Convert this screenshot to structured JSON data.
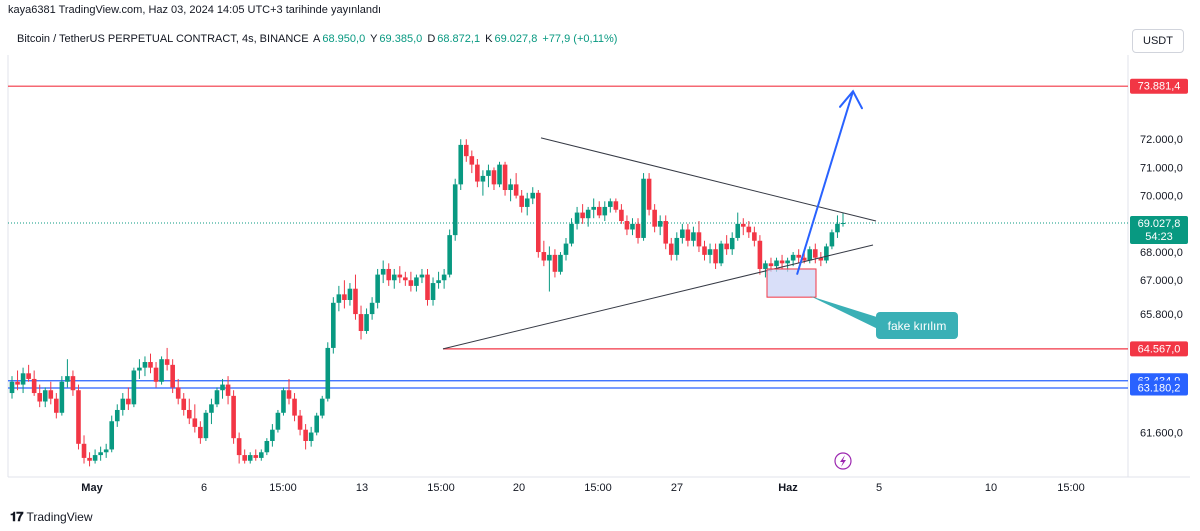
{
  "publish_line": "kaya6381 TradingView.com, Haz 03, 2024 14:05 UTC+3 tarihinde yayınlandı",
  "legend": {
    "symbol": "Bitcoin / TetherUS PERPETUAL CONTRACT, 4s, BINANCE",
    "open_label": "A",
    "open": "68.950,0",
    "high_label": "Y",
    "high": "69.385,0",
    "low_label": "D",
    "low": "68.872,1",
    "close_label": "K",
    "close": "69.027,8",
    "change": "+77,9 (+0,11%)"
  },
  "currency": "USDT",
  "brand": "TradingView",
  "colors": {
    "up": "#089981",
    "down": "#f23645",
    "line_red": "#f23645",
    "line_blue": "#2962ff",
    "callout": "#3ab0b6",
    "zone": "#c9d1f7"
  },
  "chart_data": {
    "type": "candlestick",
    "y_axis_ticks": [
      "72.000,0",
      "71.000,0",
      "70.000,0",
      "68.000,0",
      "67.000,0",
      "65.800,0",
      "61.600,0"
    ],
    "x_axis_ticks": [
      "May",
      "6",
      "15:00",
      "13",
      "15:00",
      "20",
      "15:00",
      "27",
      "Haz",
      "5",
      "10",
      "15:00"
    ],
    "price_labels": [
      {
        "text": "73.881,4",
        "color": "#f23645"
      },
      {
        "text": "69.027,8",
        "sub": "54:23",
        "color": "#089981"
      },
      {
        "text": "64.567,0",
        "color": "#f23645"
      },
      {
        "text": "63.434,9",
        "color": "#2962ff"
      },
      {
        "text": "63.180,2",
        "color": "#2962ff"
      }
    ],
    "horizontal_levels": [
      {
        "value": 73881.4,
        "color": "#f23645"
      },
      {
        "value": 64567.0,
        "color": "#f23645"
      },
      {
        "value": 63434.9,
        "color": "#2962ff"
      },
      {
        "value": 63180.2,
        "color": "#2962ff"
      }
    ],
    "annotation": "fake kırılım",
    "candles": [
      [
        63.0,
        63.6,
        62.8,
        63.4
      ],
      [
        63.4,
        63.8,
        63.1,
        63.3
      ],
      [
        63.3,
        63.9,
        63.0,
        63.7
      ],
      [
        63.7,
        64.0,
        63.4,
        63.5
      ],
      [
        63.5,
        63.8,
        62.9,
        63.0
      ],
      [
        63.0,
        63.3,
        62.5,
        62.7
      ],
      [
        62.7,
        63.2,
        62.5,
        63.1
      ],
      [
        63.1,
        63.4,
        62.6,
        62.8
      ],
      [
        62.8,
        63.0,
        62.1,
        62.3
      ],
      [
        62.3,
        63.6,
        62.2,
        63.4
      ],
      [
        63.4,
        64.2,
        63.2,
        63.6
      ],
      [
        63.6,
        63.8,
        62.9,
        63.1
      ],
      [
        63.1,
        63.3,
        61.0,
        61.2
      ],
      [
        61.2,
        61.5,
        60.5,
        60.7
      ],
      [
        60.7,
        60.9,
        60.4,
        60.6
      ],
      [
        60.6,
        61.0,
        60.5,
        60.8
      ],
      [
        60.8,
        61.1,
        60.6,
        60.9
      ],
      [
        60.9,
        61.2,
        60.7,
        61.0
      ],
      [
        61.0,
        62.2,
        60.9,
        62.0
      ],
      [
        62.0,
        62.6,
        61.8,
        62.4
      ],
      [
        62.4,
        63.0,
        62.2,
        62.8
      ],
      [
        62.8,
        63.2,
        62.4,
        62.6
      ],
      [
        62.6,
        63.9,
        62.5,
        63.8
      ],
      [
        63.8,
        64.2,
        63.5,
        63.9
      ],
      [
        63.9,
        64.3,
        63.6,
        64.1
      ],
      [
        64.1,
        64.4,
        63.7,
        63.9
      ],
      [
        63.9,
        64.1,
        63.2,
        63.4
      ],
      [
        63.4,
        64.3,
        63.3,
        64.2
      ],
      [
        64.2,
        64.6,
        63.8,
        64.0
      ],
      [
        64.0,
        64.2,
        63.0,
        63.2
      ],
      [
        63.2,
        63.5,
        62.6,
        62.8
      ],
      [
        62.8,
        63.0,
        62.2,
        62.4
      ],
      [
        62.4,
        62.8,
        61.9,
        62.1
      ],
      [
        62.1,
        62.6,
        61.6,
        61.8
      ],
      [
        61.8,
        62.0,
        61.2,
        61.4
      ],
      [
        61.4,
        62.4,
        61.3,
        62.3
      ],
      [
        62.3,
        62.8,
        61.9,
        62.6
      ],
      [
        62.6,
        63.2,
        62.5,
        63.1
      ],
      [
        63.1,
        63.5,
        62.8,
        63.3
      ],
      [
        63.3,
        63.6,
        62.6,
        62.9
      ],
      [
        62.9,
        63.1,
        61.2,
        61.4
      ],
      [
        61.4,
        61.6,
        60.5,
        60.8
      ],
      [
        60.8,
        61.0,
        60.5,
        60.6
      ],
      [
        60.6,
        60.9,
        60.5,
        60.8
      ],
      [
        60.8,
        61.0,
        60.6,
        60.7
      ],
      [
        60.7,
        61.0,
        60.6,
        60.9
      ],
      [
        60.9,
        61.4,
        60.8,
        61.3
      ],
      [
        61.3,
        61.9,
        61.1,
        61.7
      ],
      [
        61.7,
        62.4,
        61.6,
        62.3
      ],
      [
        62.3,
        63.2,
        62.2,
        63.1
      ],
      [
        63.1,
        63.5,
        62.6,
        62.8
      ],
      [
        62.8,
        63.0,
        62.0,
        62.2
      ],
      [
        62.2,
        62.4,
        61.5,
        61.7
      ],
      [
        61.7,
        61.9,
        61.0,
        61.3
      ],
      [
        61.3,
        61.8,
        61.1,
        61.6
      ],
      [
        61.6,
        62.3,
        61.5,
        62.2
      ],
      [
        62.2,
        62.9,
        62.1,
        62.8
      ],
      [
        62.8,
        64.8,
        62.7,
        64.6
      ],
      [
        64.6,
        66.4,
        64.4,
        66.2
      ],
      [
        66.2,
        66.8,
        65.9,
        66.5
      ],
      [
        66.5,
        67.0,
        66.0,
        66.3
      ],
      [
        66.3,
        66.9,
        66.1,
        66.7
      ],
      [
        66.7,
        67.2,
        65.6,
        65.8
      ],
      [
        65.8,
        66.1,
        64.9,
        65.2
      ],
      [
        65.2,
        66.0,
        65.1,
        65.8
      ],
      [
        65.8,
        66.4,
        65.6,
        66.2
      ],
      [
        66.2,
        67.4,
        66.0,
        67.2
      ],
      [
        67.2,
        67.7,
        66.9,
        67.4
      ],
      [
        67.4,
        67.6,
        66.8,
        67.0
      ],
      [
        67.0,
        67.4,
        66.7,
        67.2
      ],
      [
        67.2,
        67.5,
        66.9,
        67.1
      ],
      [
        67.1,
        67.3,
        66.8,
        67.0
      ],
      [
        67.0,
        67.3,
        66.6,
        66.8
      ],
      [
        66.8,
        67.2,
        66.6,
        67.1
      ],
      [
        67.1,
        67.4,
        66.9,
        67.2
      ],
      [
        67.2,
        67.4,
        66.1,
        66.3
      ],
      [
        66.3,
        67.1,
        66.1,
        66.9
      ],
      [
        66.9,
        67.3,
        66.7,
        67.0
      ],
      [
        67.0,
        67.4,
        66.7,
        67.2
      ],
      [
        67.2,
        68.8,
        67.1,
        68.6
      ],
      [
        68.6,
        70.6,
        68.4,
        70.4
      ],
      [
        70.4,
        72.0,
        70.2,
        71.8
      ],
      [
        71.8,
        72.0,
        71.2,
        71.4
      ],
      [
        71.4,
        71.6,
        70.8,
        71.1
      ],
      [
        71.1,
        71.3,
        70.3,
        70.5
      ],
      [
        70.5,
        70.9,
        70.0,
        70.7
      ],
      [
        70.7,
        71.1,
        70.3,
        70.9
      ],
      [
        70.9,
        71.0,
        70.2,
        70.4
      ],
      [
        70.4,
        71.2,
        70.3,
        71.1
      ],
      [
        71.1,
        71.2,
        70.0,
        70.2
      ],
      [
        70.2,
        70.6,
        69.8,
        70.4
      ],
      [
        70.4,
        70.8,
        69.9,
        70.0
      ],
      [
        70.0,
        70.2,
        69.4,
        69.6
      ],
      [
        69.6,
        70.1,
        69.3,
        69.9
      ],
      [
        69.9,
        70.3,
        69.7,
        70.1
      ],
      [
        70.1,
        70.2,
        67.8,
        68.0
      ],
      [
        68.0,
        68.4,
        67.5,
        67.7
      ],
      [
        67.7,
        68.2,
        66.6,
        67.9
      ],
      [
        67.9,
        68.1,
        67.1,
        67.3
      ],
      [
        67.3,
        68.0,
        67.2,
        67.9
      ],
      [
        67.9,
        68.5,
        67.7,
        68.3
      ],
      [
        68.3,
        69.2,
        68.2,
        69.0
      ],
      [
        69.0,
        69.6,
        68.8,
        69.4
      ],
      [
        69.4,
        69.7,
        69.0,
        69.2
      ],
      [
        69.2,
        69.6,
        68.9,
        69.5
      ],
      [
        69.5,
        69.9,
        69.2,
        69.6
      ],
      [
        69.6,
        69.8,
        69.2,
        69.3
      ],
      [
        69.3,
        69.8,
        69.1,
        69.6
      ],
      [
        69.6,
        69.9,
        69.4,
        69.8
      ],
      [
        69.8,
        69.9,
        69.4,
        69.5
      ],
      [
        69.5,
        69.7,
        69.0,
        69.1
      ],
      [
        69.1,
        69.3,
        68.6,
        68.8
      ],
      [
        68.8,
        69.2,
        68.6,
        69.0
      ],
      [
        69.0,
        69.2,
        68.3,
        68.5
      ],
      [
        68.5,
        70.8,
        68.4,
        70.6
      ],
      [
        70.6,
        70.8,
        69.3,
        69.5
      ],
      [
        69.5,
        69.7,
        68.7,
        68.9
      ],
      [
        68.9,
        69.3,
        68.6,
        69.1
      ],
      [
        69.1,
        69.3,
        68.1,
        68.3
      ],
      [
        68.3,
        68.5,
        67.7,
        67.9
      ],
      [
        67.9,
        68.7,
        67.7,
        68.5
      ],
      [
        68.5,
        69.0,
        68.3,
        68.8
      ],
      [
        68.8,
        69.0,
        68.2,
        68.4
      ],
      [
        68.4,
        68.9,
        68.2,
        68.7
      ],
      [
        68.7,
        69.1,
        68.0,
        68.2
      ],
      [
        68.2,
        68.4,
        67.7,
        67.9
      ],
      [
        67.9,
        68.3,
        67.6,
        68.1
      ],
      [
        68.1,
        68.3,
        67.4,
        67.6
      ],
      [
        67.6,
        68.4,
        67.5,
        68.3
      ],
      [
        68.3,
        68.6,
        67.9,
        68.1
      ],
      [
        68.1,
        68.7,
        67.9,
        68.5
      ],
      [
        68.5,
        69.4,
        68.4,
        69.0
      ],
      [
        69.0,
        69.2,
        68.6,
        68.9
      ],
      [
        68.9,
        69.1,
        68.5,
        68.7
      ],
      [
        68.7,
        68.9,
        68.2,
        68.4
      ],
      [
        68.4,
        68.6,
        67.2,
        67.4
      ],
      [
        67.4,
        67.7,
        67.1,
        67.6
      ],
      [
        67.6,
        67.8,
        67.3,
        67.5
      ],
      [
        67.5,
        67.8,
        67.3,
        67.7
      ],
      [
        67.7,
        67.9,
        67.4,
        67.6
      ],
      [
        67.6,
        67.8,
        67.3,
        67.7
      ],
      [
        67.7,
        68.0,
        67.5,
        67.9
      ],
      [
        67.9,
        68.1,
        67.6,
        67.8
      ],
      [
        67.8,
        68.0,
        67.6,
        67.7
      ],
      [
        67.7,
        68.2,
        67.6,
        68.1
      ],
      [
        68.1,
        68.3,
        67.6,
        67.8
      ],
      [
        67.8,
        68.0,
        67.5,
        67.7
      ],
      [
        67.7,
        68.3,
        67.6,
        68.2
      ],
      [
        68.2,
        68.8,
        68.1,
        68.7
      ],
      [
        68.7,
        69.3,
        68.5,
        69.0
      ],
      [
        69.0,
        69.4,
        68.9,
        69.03
      ]
    ]
  }
}
